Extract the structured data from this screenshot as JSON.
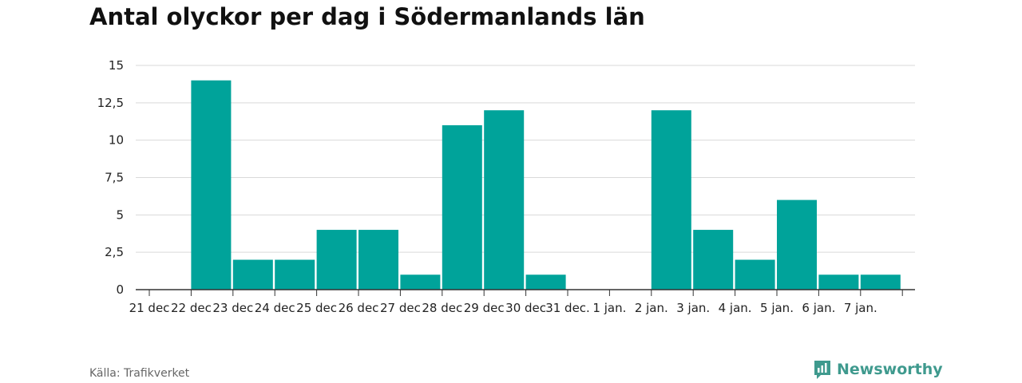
{
  "title": "Antal olyckor per dag i Södermanlands län",
  "source": "Källa: Trafikverket",
  "brand": {
    "name": "Newsworthy",
    "icon": "newsworthy-logo-icon",
    "color": "#3f9a8e"
  },
  "chart_data": {
    "type": "bar",
    "title": "Antal olyckor per dag i Södermanlands län",
    "xlabel": "",
    "ylabel": "",
    "categories": [
      "21 dec",
      "22 dec",
      "23 dec",
      "24 dec",
      "25 dec",
      "26 dec",
      "27 dec",
      "28 dec",
      "29 dec",
      "30 dec",
      "31 dec.",
      "1 jan.",
      "2 jan.",
      "3 jan.",
      "4 jan.",
      "5 jan.",
      "6 jan.",
      "7 jan."
    ],
    "values": [
      0,
      14,
      2,
      2,
      4,
      4,
      1,
      11,
      12,
      1,
      0,
      0,
      12,
      4,
      2,
      6,
      1,
      1
    ],
    "ylim": [
      0,
      15
    ],
    "yticks": [
      0,
      2.5,
      5,
      7.5,
      10,
      12.5,
      15
    ],
    "ytick_labels": [
      "0",
      "2,5",
      "5",
      "7,5",
      "10",
      "12,5",
      "15"
    ],
    "grid": true,
    "legend": "none",
    "bar_color": "#00a39a"
  }
}
